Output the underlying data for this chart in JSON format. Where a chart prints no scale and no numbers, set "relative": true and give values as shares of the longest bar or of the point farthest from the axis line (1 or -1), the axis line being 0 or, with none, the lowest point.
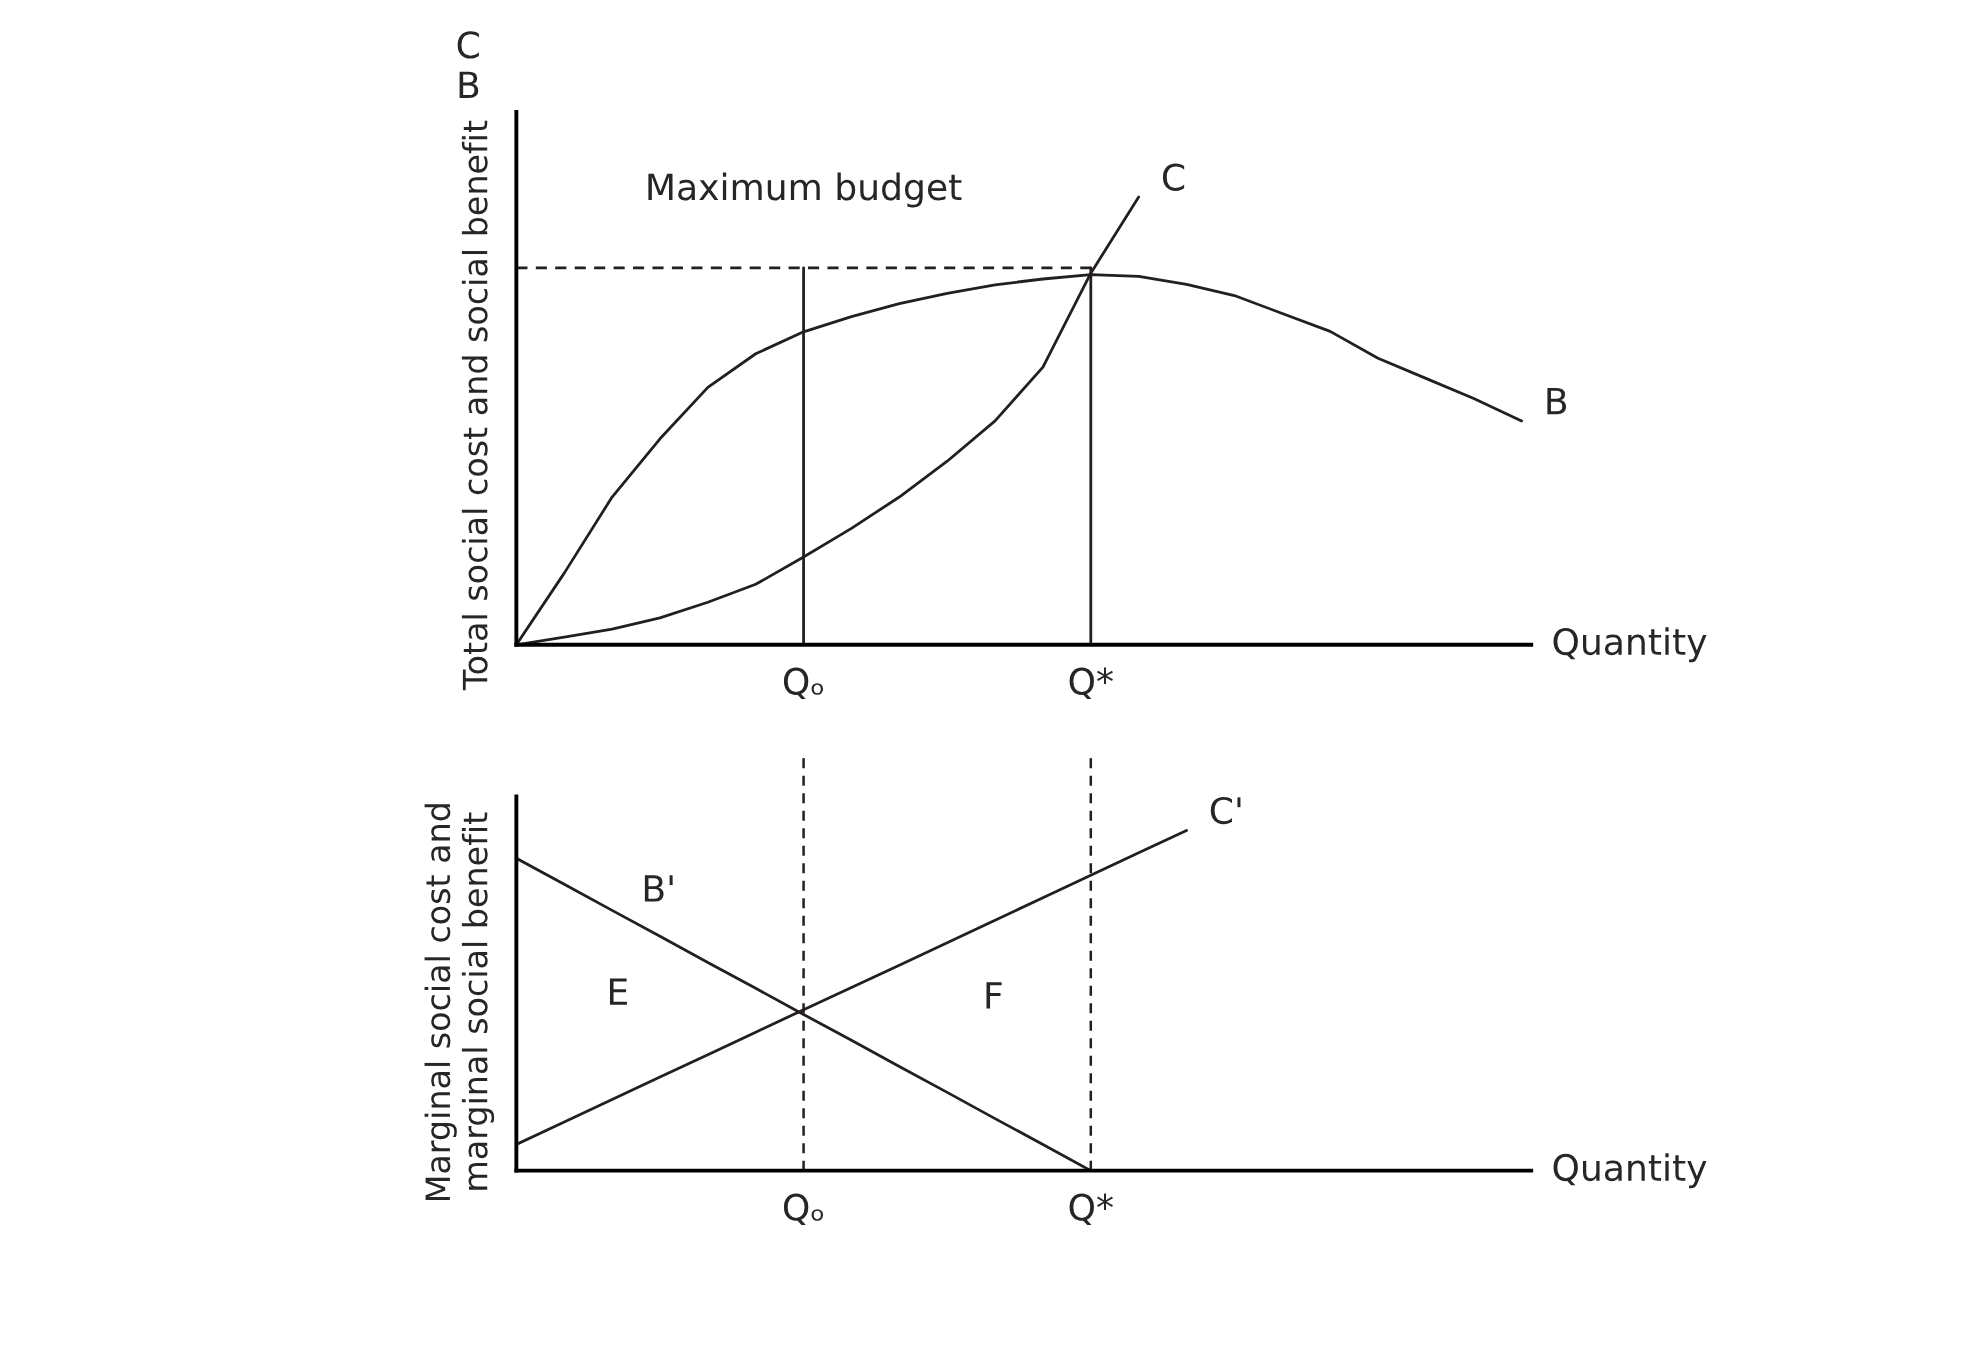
{
  "chart_data": [
    {
      "type": "line",
      "relative": true,
      "ylabel": "Total social cost and social benefit",
      "xlabel": "Quantity",
      "line_style": "solid",
      "marker": "none",
      "categories": [
        null,
        null,
        null,
        null,
        null,
        null,
        "Qₒ",
        null,
        null,
        null,
        null,
        null,
        "Q*",
        null,
        null,
        null,
        null,
        null,
        null,
        null,
        null,
        null
      ],
      "annotations": [
        "C",
        "B"
      ],
      "ref_lines": [
        {
          "axis": "x",
          "value": "Qₒ",
          "line_style": "solid",
          "color": "#231f20"
        },
        {
          "axis": "x",
          "value": "Q*",
          "line_style": "solid",
          "color": "#231f20"
        }
      ],
      "series": [
        {
          "name": "B",
          "color": "#231f20",
          "values": [
            0,
            0.16,
            0.33,
            0.46,
            0.575,
            0.65,
            0.699,
            0.733,
            0.762,
            0.785,
            0.804,
            0.817,
            0.827,
            0.823,
            0.805,
            0.78,
            0.74,
            0.7,
            0.64,
            0.595,
            0.55,
            0.5
          ]
        },
        {
          "name": "C",
          "color": "#231f20",
          "values": [
            0,
            0.017,
            0.035,
            0.06,
            0.095,
            0.135,
            0.196,
            0.26,
            0.33,
            0.41,
            0.5,
            0.62,
            0.83,
            1.0,
            null,
            null,
            null,
            null,
            null,
            null,
            null,
            null
          ]
        },
        {
          "name": "Maximum budget",
          "color": "#231f20",
          "line_style": "dashed",
          "values": [
            0.842,
            0.842,
            0.842,
            0.842,
            0.842,
            0.842,
            0.842,
            0.842,
            0.842,
            0.842,
            0.842,
            0.842,
            0.842,
            null,
            null,
            null,
            null,
            null,
            null,
            null,
            null,
            null
          ]
        }
      ]
    },
    {
      "type": "line",
      "relative": true,
      "ylabel": "Marginal social cost and\nmarginal social benefit",
      "xlabel": "Quantity",
      "line_style": "solid",
      "marker": "none",
      "categories": [
        null,
        null,
        null,
        null,
        null,
        null,
        "Qₒ",
        null,
        null,
        null,
        null,
        null,
        "Q*",
        null,
        null,
        null,
        null,
        null,
        null,
        null,
        null,
        null
      ],
      "annotations": [
        "E",
        "F"
      ],
      "ref_lines": [
        {
          "axis": "x",
          "value": "Qₒ",
          "line_style": "dashed",
          "color": "#231f20"
        },
        {
          "axis": "x",
          "value": "Q*",
          "line_style": "dashed",
          "color": "#231f20"
        }
      ],
      "series": [
        {
          "name": "B'",
          "color": "#231f20",
          "values": [
            0.918,
            0.842,
            0.765,
            0.689,
            0.612,
            0.536,
            0.459,
            0.383,
            0.306,
            0.23,
            0.153,
            0.077,
            0,
            null,
            null,
            null,
            null,
            null,
            null,
            null,
            null,
            null
          ]
        },
        {
          "name": "C'",
          "color": "#231f20",
          "values": [
            0.077,
            0.143,
            0.209,
            0.275,
            0.341,
            0.407,
            0.473,
            0.538,
            0.604,
            0.67,
            0.736,
            0.802,
            0.868,
            0.934,
            1.0,
            null,
            null,
            null,
            null,
            null,
            null,
            null
          ]
        }
      ]
    }
  ]
}
